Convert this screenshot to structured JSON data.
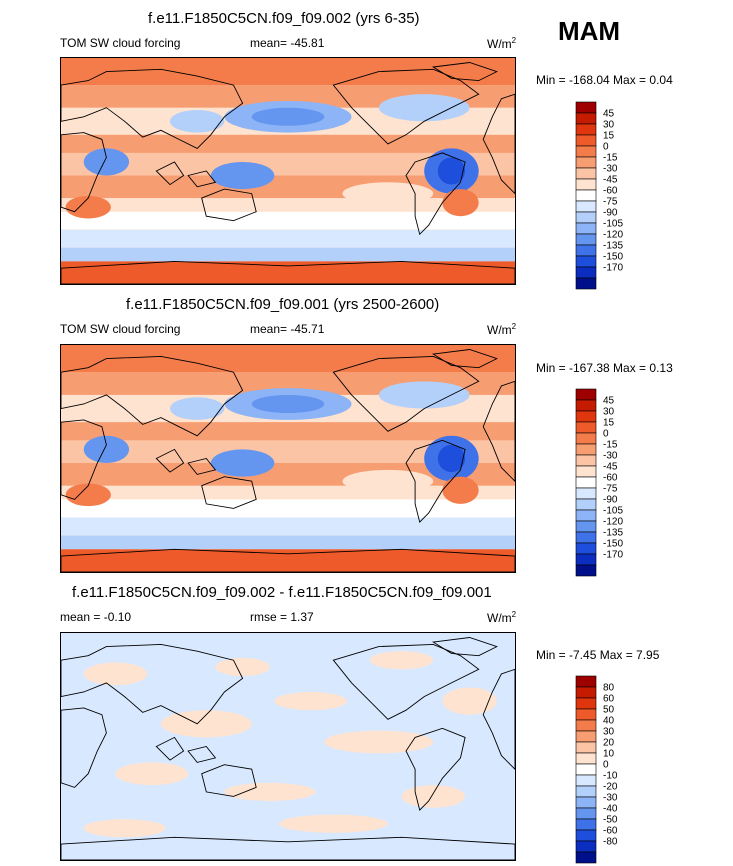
{
  "season": "MAM",
  "panels": [
    {
      "title": "f.e11.F1850C5CN.f09_f09.002 (yrs 6-35)",
      "left_label": "TOM SW cloud forcing",
      "center_label": "mean= -45.81",
      "units": "W/m",
      "units_sup": "2",
      "minmax": "Min = -168.04 Max =   0.04",
      "colorbar": {
        "levels": [
          "45",
          "30",
          "15",
          "0",
          "-15",
          "-30",
          "-45",
          "-60",
          "-75",
          "-90",
          "-105",
          "-120",
          "-135",
          "-150",
          "-170"
        ],
        "colors": [
          "#9e0000",
          "#c51b00",
          "#e0360e",
          "#ef5a2a",
          "#f47c4a",
          "#f79d72",
          "#fbc4a5",
          "#fee3d0",
          "#ffffff",
          "#d8e8ff",
          "#b3d0fb",
          "#8db4f6",
          "#6495ef",
          "#3f72e8",
          "#1e4fdc",
          "#0c2ec0",
          "#00108a"
        ]
      },
      "map_style": "full"
    },
    {
      "title": "f.e11.F1850C5CN.f09_f09.001 (yrs 2500-2600)",
      "left_label": "TOM SW cloud forcing",
      "center_label": "mean= -45.71",
      "units": "W/m",
      "units_sup": "2",
      "minmax": "Min = -167.38 Max =   0.13",
      "colorbar": {
        "levels": [
          "45",
          "30",
          "15",
          "0",
          "-15",
          "-30",
          "-45",
          "-60",
          "-75",
          "-90",
          "-105",
          "-120",
          "-135",
          "-150",
          "-170"
        ],
        "colors": [
          "#9e0000",
          "#c51b00",
          "#e0360e",
          "#ef5a2a",
          "#f47c4a",
          "#f79d72",
          "#fbc4a5",
          "#fee3d0",
          "#ffffff",
          "#d8e8ff",
          "#b3d0fb",
          "#8db4f6",
          "#6495ef",
          "#3f72e8",
          "#1e4fdc",
          "#0c2ec0",
          "#00108a"
        ]
      },
      "map_style": "full"
    },
    {
      "title": "f.e11.F1850C5CN.f09_f09.002 - f.e11.F1850C5CN.f09_f09.001",
      "left_label": "mean =  -0.10",
      "center_label": "rmse =   1.37",
      "units": "W/m",
      "units_sup": "2",
      "minmax": "Min =  -7.45 Max =   7.95",
      "colorbar": {
        "levels": [
          "80",
          "60",
          "50",
          "40",
          "30",
          "20",
          "10",
          "0",
          "-10",
          "-20",
          "-30",
          "-40",
          "-50",
          "-60",
          "-80"
        ],
        "colors": [
          "#9e0000",
          "#c51b00",
          "#e0360e",
          "#ef5a2a",
          "#f47c4a",
          "#f79d72",
          "#fbc4a5",
          "#fee3d0",
          "#ffffff",
          "#d8e8ff",
          "#b3d0fb",
          "#8db4f6",
          "#6495ef",
          "#3f72e8",
          "#1e4fdc",
          "#0c2ec0",
          "#00108a"
        ]
      },
      "map_style": "diff"
    }
  ]
}
